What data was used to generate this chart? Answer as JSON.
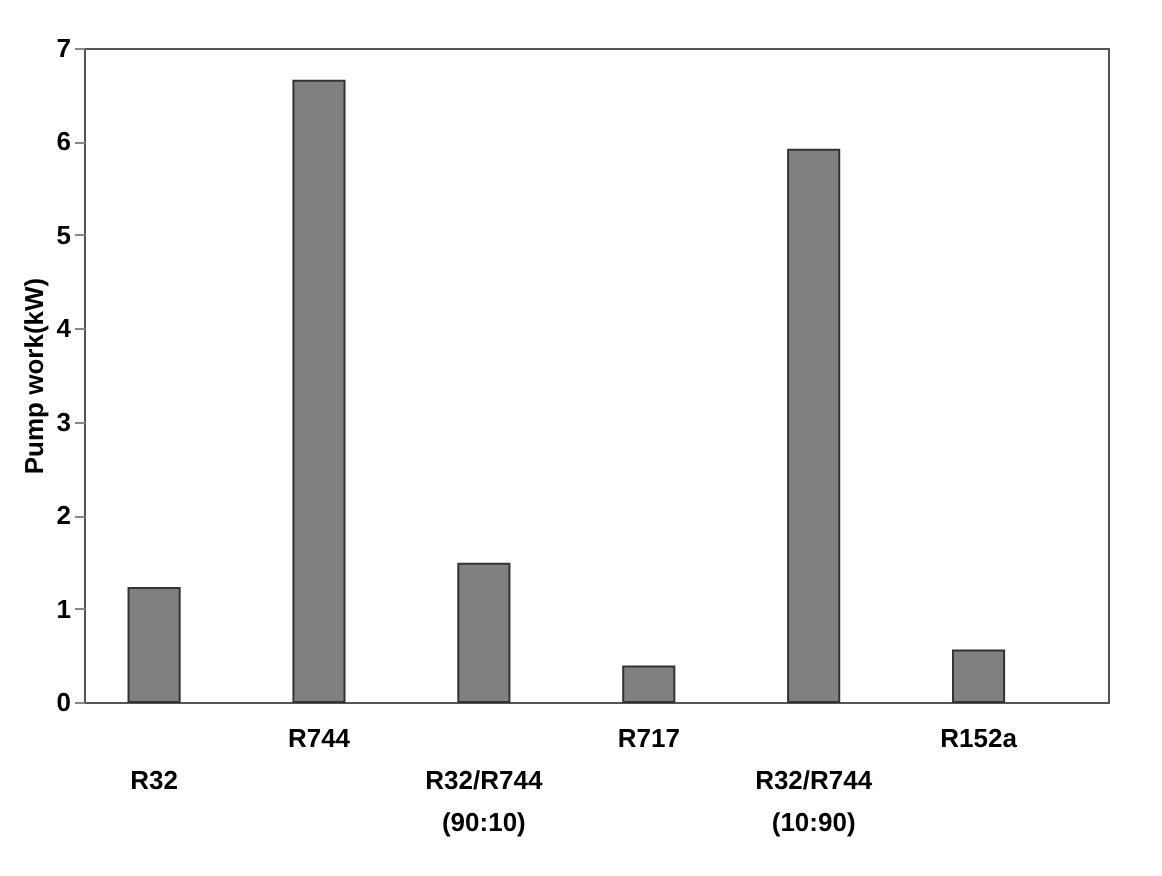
{
  "chart_data": {
    "type": "bar",
    "ylabel": "Pump work(kW)",
    "categories": [
      "R32",
      "R744",
      "R32/R744 (90:10)",
      "R717",
      "R32/R744 (10:90)",
      "R152a"
    ],
    "values": [
      1.22,
      6.65,
      1.48,
      0.38,
      5.91,
      0.55
    ],
    "color": "#808080",
    "ylim": [
      0,
      7
    ],
    "yticks": [
      0,
      1,
      2,
      3,
      4,
      5,
      6,
      7
    ],
    "grid": false
  }
}
